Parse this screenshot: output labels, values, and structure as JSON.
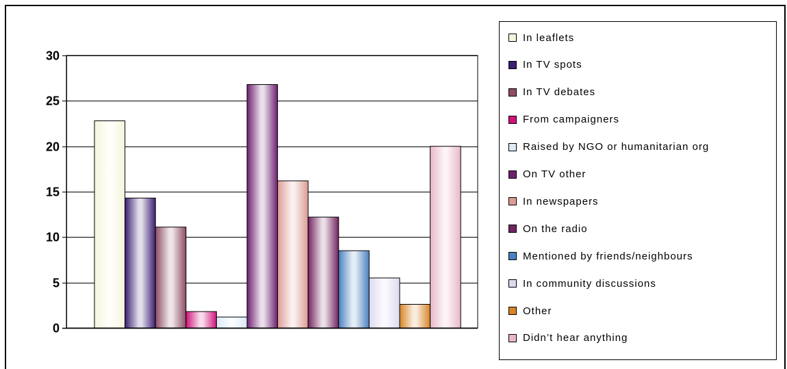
{
  "chart_data": {
    "type": "bar",
    "title": "",
    "xlabel": "",
    "ylabel": "",
    "ylim": [
      0,
      30
    ],
    "yticks": [
      "0",
      "5",
      "10",
      "15",
      "20",
      "25",
      "30"
    ],
    "grid": true,
    "legend_position": "right",
    "series": [
      {
        "name": "In leaflets",
        "value": 22.8,
        "color": "#f5f5dc"
      },
      {
        "name": "In TV spots",
        "value": 14.3,
        "color": "#3b1f72"
      },
      {
        "name": "In TV debates",
        "value": 11.1,
        "color": "#8e4d66"
      },
      {
        "name": "From campaigners",
        "value": 1.8,
        "color": "#d0127a"
      },
      {
        "name": "Raised by NGO or humanitarian org",
        "value": 1.2,
        "color": "#dce9f7"
      },
      {
        "name": "On TV other",
        "value": 26.8,
        "color": "#6e2070"
      },
      {
        "name": "In newspapers",
        "value": 16.2,
        "color": "#dc9c94"
      },
      {
        "name": "On the radio",
        "value": 12.2,
        "color": "#72245f"
      },
      {
        "name": "Mentioned by friends/neighbours",
        "value": 8.5,
        "color": "#4a81c0"
      },
      {
        "name": "In community discussions",
        "value": 5.5,
        "color": "#dcdaf0"
      },
      {
        "name": "Other",
        "value": 2.6,
        "color": "#d88427"
      },
      {
        "name": "Didn’t hear anything",
        "value": 20.0,
        "color": "#e8b7c8"
      }
    ]
  }
}
